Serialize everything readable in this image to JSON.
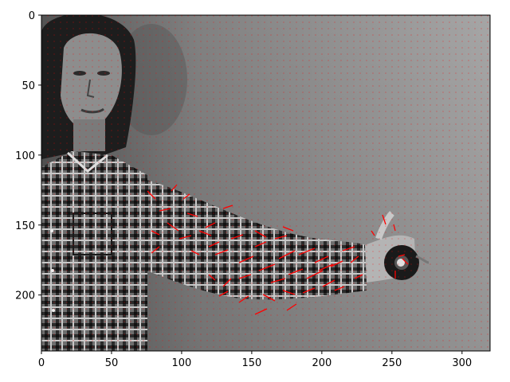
{
  "figure": {
    "type": "image_with_flow_field",
    "x_ticks": [
      "0",
      "50",
      "100",
      "150",
      "200",
      "250",
      "300"
    ],
    "y_ticks": [
      "0",
      "50",
      "100",
      "150",
      "200"
    ],
    "x_range": [
      0,
      320
    ],
    "y_range": [
      240,
      0
    ],
    "tick_values_x": [
      0,
      50,
      100,
      150,
      200,
      250,
      300
    ],
    "tick_values_y": [
      0,
      50,
      100,
      150,
      200
    ],
    "colors": {
      "background": "#ffffff",
      "photo_wall": "#9a9a9a",
      "vector_color": "#ff0000",
      "axis_color": "#000000"
    },
    "scene": "grayscale photo of a woman in a plaid shirt extending her right arm, holding a dark round object near x≈255"
  }
}
